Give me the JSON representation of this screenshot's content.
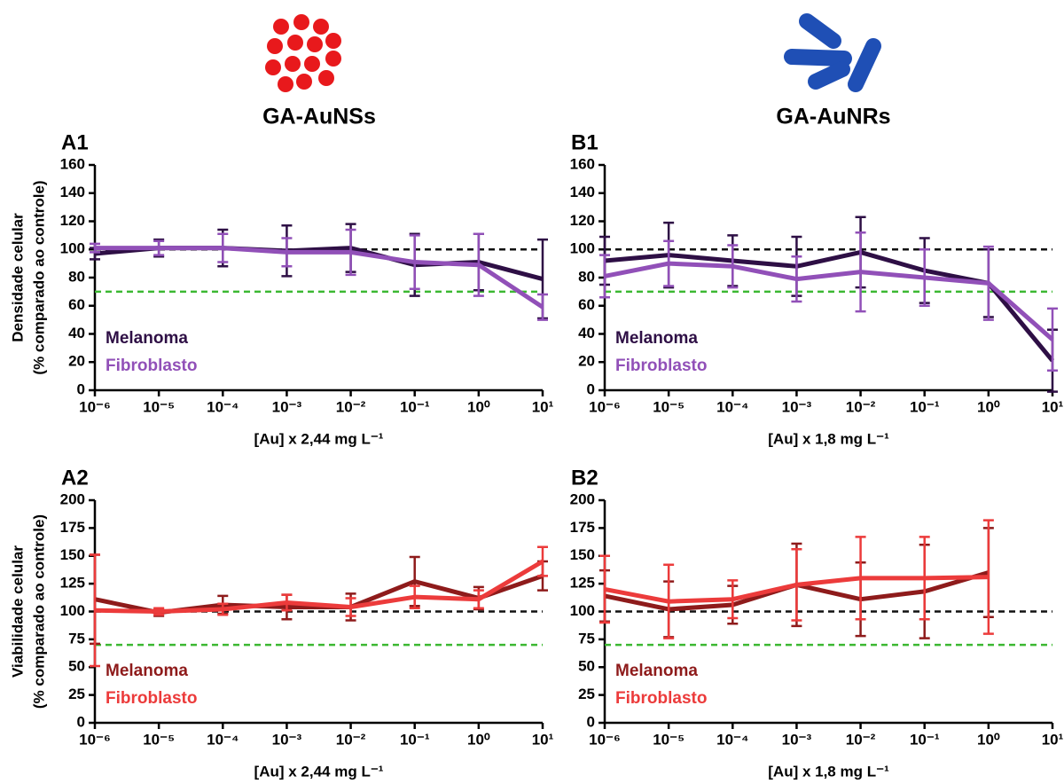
{
  "headers": [
    "GA-AuNSs",
    "GA-AuNRs"
  ],
  "chart_data": [
    {
      "type": "line",
      "panel": "A1",
      "ylabel": [
        "Densidade celular",
        "(% comparado ao controle)"
      ],
      "xlabel": "[Au] x 2,44 mg L⁻¹",
      "xscale": "log",
      "xlim": [
        1e-06,
        10
      ],
      "ylim": [
        0,
        160
      ],
      "yticks": [
        0,
        20,
        40,
        60,
        80,
        100,
        120,
        140,
        160
      ],
      "xticks": [
        {
          "value": 1e-06,
          "label": "10⁻⁶"
        },
        {
          "value": 1e-05,
          "label": "10⁻⁵"
        },
        {
          "value": 0.0001,
          "label": "10⁻⁴"
        },
        {
          "value": 0.001,
          "label": "10⁻³"
        },
        {
          "value": 0.01,
          "label": "10⁻²"
        },
        {
          "value": 0.1,
          "label": "10⁻¹"
        },
        {
          "value": 1,
          "label": "10⁰"
        },
        {
          "value": 10,
          "label": "10¹"
        }
      ],
      "x": [
        1e-06,
        1e-05,
        0.0001,
        0.001,
        0.01,
        0.1,
        1,
        10
      ],
      "hlines": [
        {
          "value": 100,
          "color": "#111111"
        },
        {
          "value": 70,
          "color": "#3cb832"
        }
      ],
      "legend": "lower left",
      "series": [
        {
          "name": "Melanoma",
          "color": "#2e0f45",
          "values": [
            97,
            101,
            101,
            99,
            101,
            89,
            91,
            79
          ],
          "errors": [
            4,
            6,
            13,
            18,
            17,
            22,
            20,
            28
          ]
        },
        {
          "name": "Fibroblasto",
          "color": "#9150b8",
          "values": [
            101,
            101,
            101,
            98,
            98,
            91,
            89,
            59
          ],
          "errors": [
            3,
            5,
            10,
            10,
            16,
            19,
            22,
            9
          ]
        }
      ]
    },
    {
      "type": "line",
      "panel": "B1",
      "xlabel": "[Au] x 1,8 mg L⁻¹",
      "xscale": "log",
      "xlim": [
        1e-06,
        10
      ],
      "ylim": [
        0,
        160
      ],
      "yticks": [
        0,
        20,
        40,
        60,
        80,
        100,
        120,
        140,
        160
      ],
      "xticks": [
        {
          "value": 1e-06,
          "label": "10⁻⁶"
        },
        {
          "value": 1e-05,
          "label": "10⁻⁵"
        },
        {
          "value": 0.0001,
          "label": "10⁻⁴"
        },
        {
          "value": 0.001,
          "label": "10⁻³"
        },
        {
          "value": 0.01,
          "label": "10⁻²"
        },
        {
          "value": 0.1,
          "label": "10⁻¹"
        },
        {
          "value": 1,
          "label": "10⁰"
        },
        {
          "value": 10,
          "label": "10¹"
        }
      ],
      "x": [
        1e-06,
        1e-05,
        0.0001,
        0.001,
        0.01,
        0.1,
        1,
        10
      ],
      "hlines": [
        {
          "value": 100,
          "color": "#111111"
        },
        {
          "value": 70,
          "color": "#3cb832"
        }
      ],
      "legend": "lower left",
      "series": [
        {
          "name": "Melanoma",
          "color": "#2e0f45",
          "values": [
            92,
            96,
            92,
            88,
            98,
            85,
            76,
            21
          ],
          "errors": [
            17,
            23,
            18,
            21,
            25,
            23,
            24,
            22
          ]
        },
        {
          "name": "Fibroblasto",
          "color": "#9150b8",
          "values": [
            81,
            90,
            88,
            79,
            84,
            80,
            76,
            36
          ],
          "errors": [
            15,
            16,
            15,
            16,
            28,
            20,
            26,
            22
          ]
        }
      ]
    },
    {
      "type": "line",
      "panel": "A2",
      "ylabel": [
        "Viabilidade celular",
        "(% comparado ao controle)"
      ],
      "xlabel": "[Au] x 2,44 mg L⁻¹",
      "xscale": "log",
      "xlim": [
        1e-06,
        10
      ],
      "ylim": [
        0,
        200
      ],
      "yticks": [
        0,
        25,
        50,
        75,
        100,
        125,
        150,
        175,
        200
      ],
      "xticks": [
        {
          "value": 1e-06,
          "label": "10⁻⁶"
        },
        {
          "value": 1e-05,
          "label": "10⁻⁵"
        },
        {
          "value": 0.0001,
          "label": "10⁻⁴"
        },
        {
          "value": 0.001,
          "label": "10⁻³"
        },
        {
          "value": 0.01,
          "label": "10⁻²"
        },
        {
          "value": 0.1,
          "label": "10⁻¹"
        },
        {
          "value": 1,
          "label": "10⁰"
        },
        {
          "value": 10,
          "label": "10¹"
        }
      ],
      "x": [
        1e-06,
        1e-05,
        0.0001,
        0.001,
        0.01,
        0.1,
        1,
        10
      ],
      "hlines": [
        {
          "value": 100,
          "color": "#111111"
        },
        {
          "value": 70,
          "color": "#3cb832"
        }
      ],
      "legend": "lower left",
      "series": [
        {
          "name": "Melanoma",
          "color": "#8e1b1b",
          "values": [
            111,
            99,
            106,
            104,
            104,
            127,
            112,
            132
          ],
          "errors": [
            40,
            3,
            8,
            11,
            12,
            22,
            10,
            13
          ]
        },
        {
          "name": "Fibroblasto",
          "color": "#ec3b3b",
          "values": [
            101,
            100,
            102,
            108,
            104,
            113,
            111,
            145
          ],
          "errors": [
            50,
            3,
            5,
            7,
            8,
            10,
            8,
            13
          ]
        }
      ]
    },
    {
      "type": "line",
      "panel": "B2",
      "xlabel": "[Au] x 1,8 mg L⁻¹",
      "xscale": "log",
      "xlim": [
        1e-06,
        10
      ],
      "ylim": [
        0,
        200
      ],
      "yticks": [
        0,
        25,
        50,
        75,
        100,
        125,
        150,
        175,
        200
      ],
      "xticks": [
        {
          "value": 1e-06,
          "label": "10⁻⁶"
        },
        {
          "value": 1e-05,
          "label": "10⁻⁵"
        },
        {
          "value": 0.0001,
          "label": "10⁻⁴"
        },
        {
          "value": 0.001,
          "label": "10⁻³"
        },
        {
          "value": 0.01,
          "label": "10⁻²"
        },
        {
          "value": 0.1,
          "label": "10⁻¹"
        },
        {
          "value": 1,
          "label": "10⁰"
        },
        {
          "value": 10,
          "label": "10¹"
        }
      ],
      "x": [
        1e-06,
        1e-05,
        0.0001,
        0.001,
        0.01,
        0.1,
        1
      ],
      "hlines": [
        {
          "value": 100,
          "color": "#111111"
        },
        {
          "value": 70,
          "color": "#3cb832"
        }
      ],
      "legend": "lower left",
      "series": [
        {
          "name": "Melanoma",
          "color": "#8e1b1b",
          "values": [
            114,
            102,
            106,
            124,
            111,
            118,
            135
          ],
          "errors": [
            23,
            25,
            17,
            37,
            33,
            42,
            40
          ]
        },
        {
          "name": "Fibroblasto",
          "color": "#ec3b3b",
          "values": [
            120,
            109,
            111,
            124,
            130,
            130,
            131
          ],
          "errors": [
            30,
            33,
            17,
            32,
            37,
            37,
            51
          ]
        }
      ]
    }
  ]
}
